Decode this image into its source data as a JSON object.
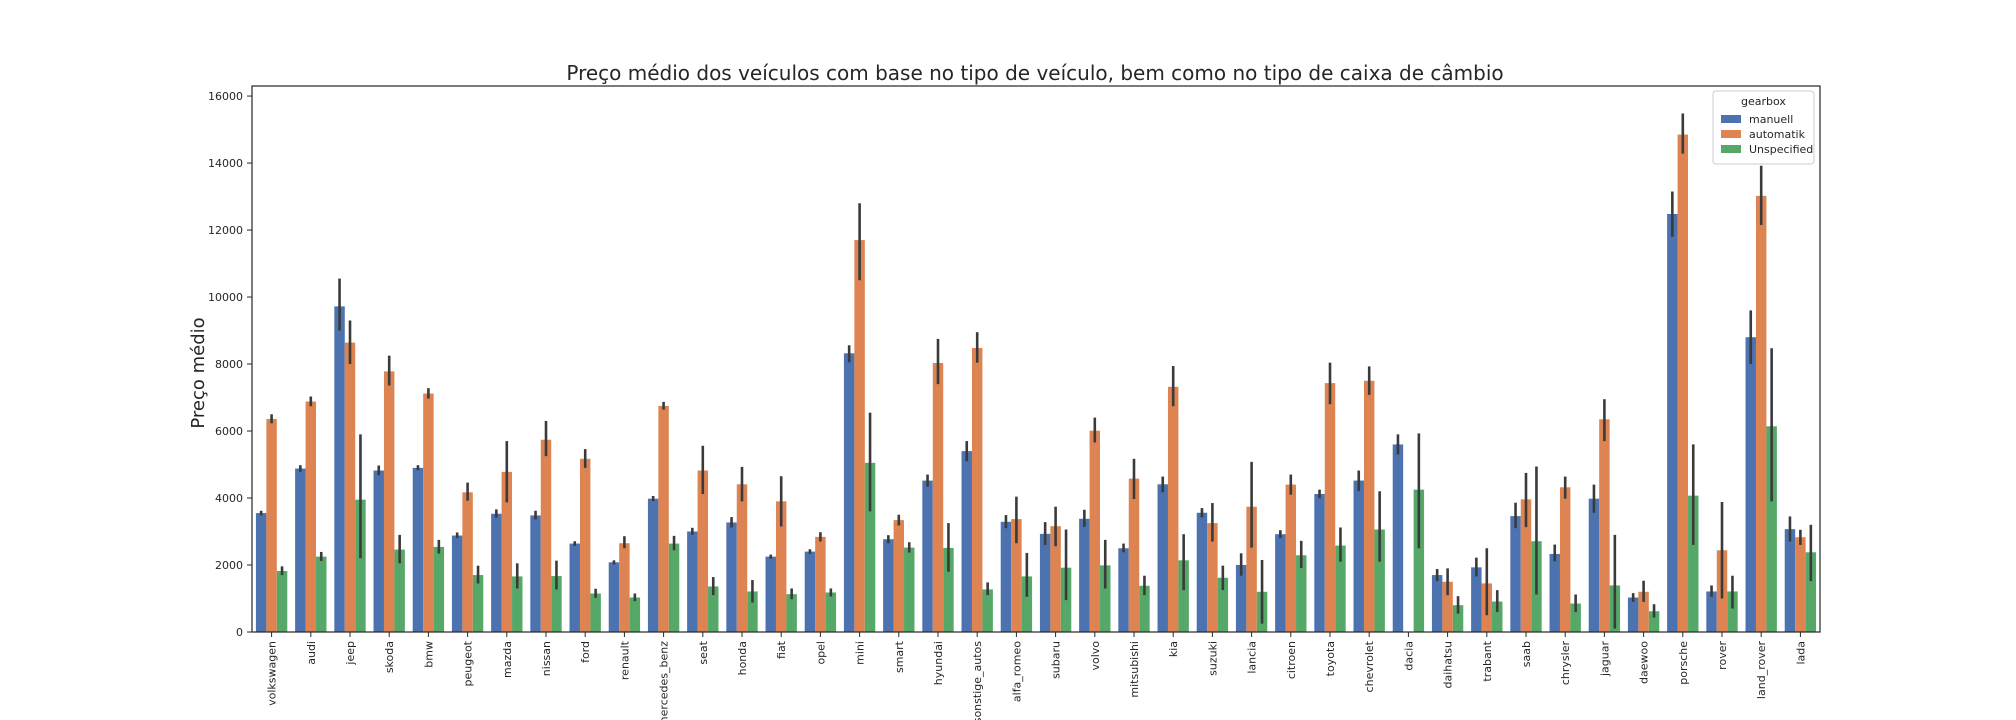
{
  "chart_data": {
    "type": "bar",
    "title": "Preço médio dos veículos com base no tipo de veículo, bem como no tipo de caixa de câmbio",
    "xlabel": "",
    "ylabel": "Preço médio",
    "ylim": [
      0,
      16300
    ],
    "yticks": [
      0,
      2000,
      4000,
      6000,
      8000,
      10000,
      12000,
      14000,
      16000
    ],
    "ytick_labels": [
      "0",
      "2000",
      "4000",
      "6000",
      "8000",
      "10000",
      "12000",
      "14000",
      "16000"
    ],
    "grid": false,
    "legend": {
      "title": "gearbox",
      "placement": "top-right"
    },
    "categories": [
      "volkswagen",
      "audi",
      "jeep",
      "skoda",
      "bmw",
      "peugeot",
      "mazda",
      "nissan",
      "ford",
      "renault",
      "mercedes_benz",
      "seat",
      "honda",
      "fiat",
      "opel",
      "mini",
      "smart",
      "hyundai",
      "sonstige_autos",
      "alfa_romeo",
      "subaru",
      "volvo",
      "mitsubishi",
      "kia",
      "suzuki",
      "lancia",
      "citroen",
      "toyota",
      "chevrolet",
      "dacia",
      "daihatsu",
      "trabant",
      "saab",
      "chrysler",
      "jaguar",
      "daewoo",
      "porsche",
      "rover",
      "land_rover",
      "lada"
    ],
    "series": [
      {
        "name": "manuell",
        "color": "#4c72b0",
        "values": [
          3550,
          4880,
          9720,
          4820,
          4900,
          2880,
          3530,
          3480,
          2640,
          2080,
          3980,
          3000,
          3270,
          2250,
          2400,
          8320,
          2770,
          4520,
          5400,
          3290,
          2930,
          3380,
          2500,
          4410,
          3560,
          2000,
          2920,
          4120,
          4520,
          5600,
          1700,
          1930,
          3460,
          2330,
          3980,
          1030,
          12480,
          1210,
          8800,
          3070
        ],
        "err_low": [
          3480,
          4780,
          9000,
          4680,
          4830,
          2800,
          3410,
          3360,
          2570,
          2020,
          3910,
          2900,
          3120,
          2190,
          2330,
          8050,
          2650,
          4340,
          5100,
          3100,
          2600,
          3140,
          2380,
          4170,
          3420,
          1680,
          2800,
          3990,
          4210,
          5300,
          1520,
          1660,
          3100,
          2110,
          3560,
          900,
          11800,
          1050,
          8000,
          2700
        ],
        "err_high": [
          3620,
          4980,
          10550,
          4970,
          4980,
          2970,
          3660,
          3620,
          2710,
          2140,
          4060,
          3110,
          3430,
          2310,
          2470,
          8560,
          2890,
          4700,
          5700,
          3490,
          3280,
          3650,
          2640,
          4640,
          3700,
          2350,
          3040,
          4250,
          4820,
          5900,
          1880,
          2220,
          3860,
          2610,
          4400,
          1160,
          13150,
          1390,
          9600,
          3450
        ]
      },
      {
        "name": "automatik",
        "color": "#dd8452",
        "values": [
          6360,
          6880,
          8640,
          7780,
          7120,
          4170,
          4780,
          5740,
          5170,
          2650,
          6750,
          4820,
          4410,
          3900,
          2840,
          11700,
          3340,
          8030,
          8480,
          3370,
          3160,
          6010,
          4580,
          7320,
          3250,
          3740,
          4400,
          7430,
          7500,
          null,
          1500,
          1450,
          3960,
          4320,
          6350,
          1200,
          14850,
          2440,
          13020,
          2830
        ],
        "err_low": [
          6230,
          6740,
          8000,
          7360,
          6970,
          3920,
          3870,
          5250,
          4900,
          2500,
          6640,
          4120,
          3900,
          3150,
          2700,
          10500,
          3180,
          7400,
          8040,
          2650,
          2560,
          5660,
          3970,
          6740,
          2700,
          2520,
          4100,
          6800,
          7080,
          null,
          1100,
          500,
          3130,
          3980,
          5700,
          900,
          14280,
          1000,
          12150,
          2600
        ],
        "err_high": [
          6500,
          7030,
          9300,
          8250,
          7280,
          4460,
          5700,
          6300,
          5460,
          2860,
          6870,
          5560,
          4930,
          4650,
          2980,
          12800,
          3500,
          8750,
          8950,
          4040,
          3740,
          6400,
          5170,
          7940,
          3850,
          5080,
          4700,
          8040,
          7930,
          null,
          1900,
          2500,
          4750,
          4640,
          6950,
          1530,
          15480,
          3880,
          13920,
          3050
        ]
      },
      {
        "name": "Unspecified",
        "color": "#55a868",
        "values": [
          1820,
          2250,
          3950,
          2460,
          2540,
          1700,
          1660,
          1670,
          1150,
          1030,
          2640,
          1360,
          1210,
          1130,
          1180,
          5050,
          2520,
          2510,
          1270,
          1660,
          1920,
          1990,
          1380,
          2140,
          1620,
          1200,
          2290,
          2580,
          3060,
          4250,
          800,
          910,
          2710,
          850,
          1390,
          620,
          4070,
          1210,
          6140,
          2380
        ],
        "err_low": [
          1700,
          2120,
          2200,
          2050,
          2340,
          1450,
          1300,
          1270,
          1020,
          920,
          2440,
          1100,
          880,
          980,
          1060,
          3600,
          2370,
          1800,
          1100,
          1050,
          950,
          1300,
          1100,
          1250,
          1250,
          250,
          1910,
          2100,
          2100,
          2500,
          550,
          600,
          1120,
          600,
          100,
          430,
          2600,
          700,
          3900,
          1520
        ],
        "err_high": [
          1960,
          2390,
          5900,
          2900,
          2750,
          1980,
          2050,
          2130,
          1290,
          1150,
          2870,
          1640,
          1550,
          1300,
          1300,
          6550,
          2680,
          3250,
          1480,
          2360,
          3060,
          2750,
          1680,
          2920,
          1980,
          2150,
          2720,
          3120,
          4200,
          5930,
          1070,
          1250,
          4940,
          1120,
          2900,
          830,
          5600,
          1680,
          8470,
          3200
        ]
      }
    ]
  }
}
